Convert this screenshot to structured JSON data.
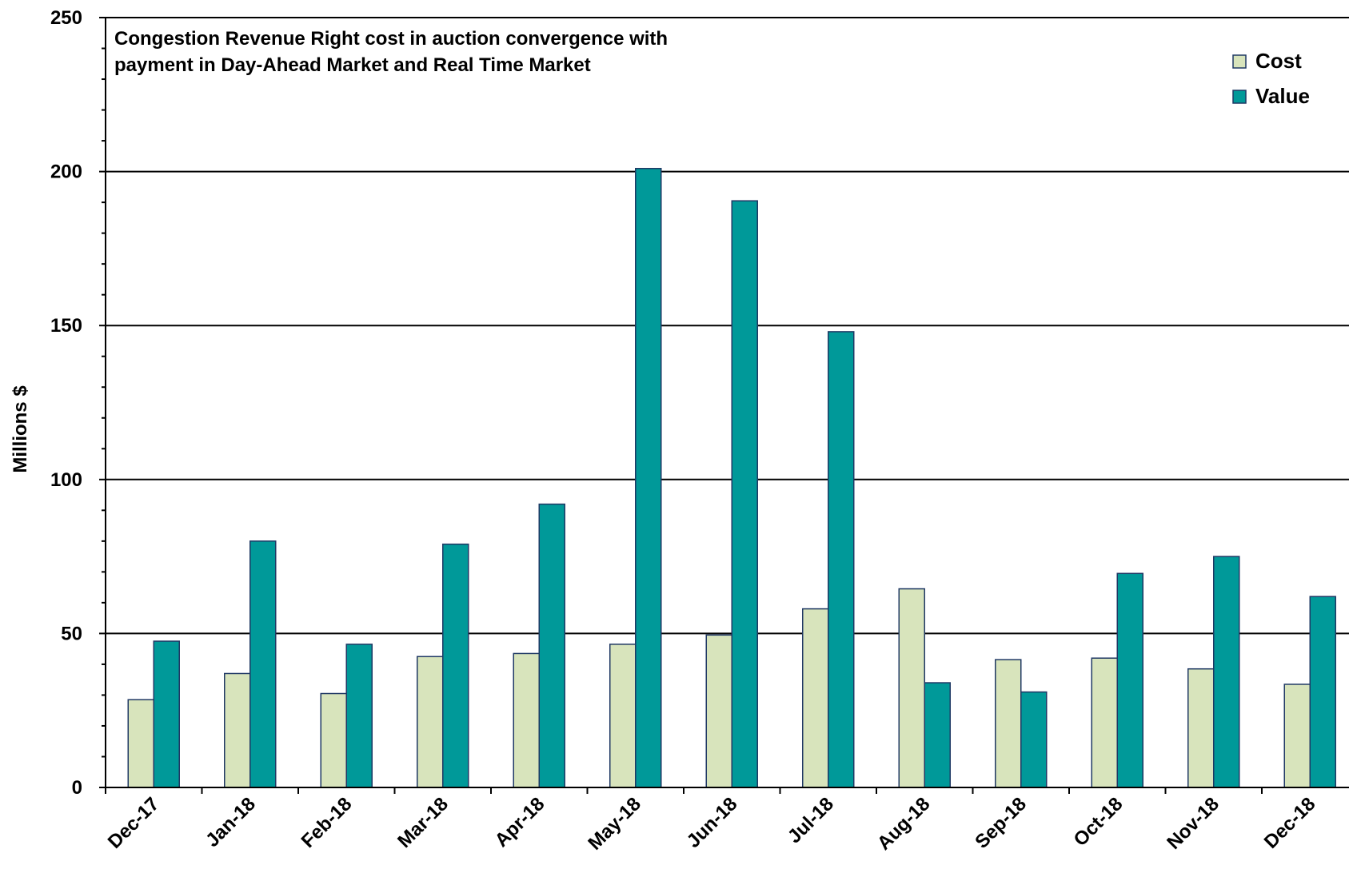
{
  "chart_data": {
    "type": "bar",
    "title_lines": [
      "Congestion Revenue Right cost in auction convergence with",
      "payment in Day-Ahead Market and Real Time Market"
    ],
    "xlabel": "",
    "ylabel": "Millions $",
    "ylim": [
      0,
      250
    ],
    "yticks": [
      "0",
      "50",
      "100",
      "150",
      "200",
      "250"
    ],
    "grid": true,
    "legend_position": "top-right",
    "categories": [
      "Dec-17",
      "Jan-18",
      "Feb-18",
      "Mar-18",
      "Apr-18",
      "May-18",
      "Jun-18",
      "Jul-18",
      "Aug-18",
      "Sep-18",
      "Oct-18",
      "Nov-18",
      "Dec-18"
    ],
    "series": [
      {
        "name": "Cost",
        "color": "#d8e4bc",
        "values": [
          28.5,
          37,
          30.5,
          42.5,
          43.5,
          46.5,
          49.5,
          58,
          64.5,
          41.5,
          42,
          38.5,
          33.5
        ]
      },
      {
        "name": "Value",
        "color": "#009999",
        "values": [
          47.5,
          80,
          46.5,
          79,
          92,
          201,
          190.5,
          148,
          34,
          31,
          69.5,
          75,
          62
        ]
      }
    ]
  }
}
